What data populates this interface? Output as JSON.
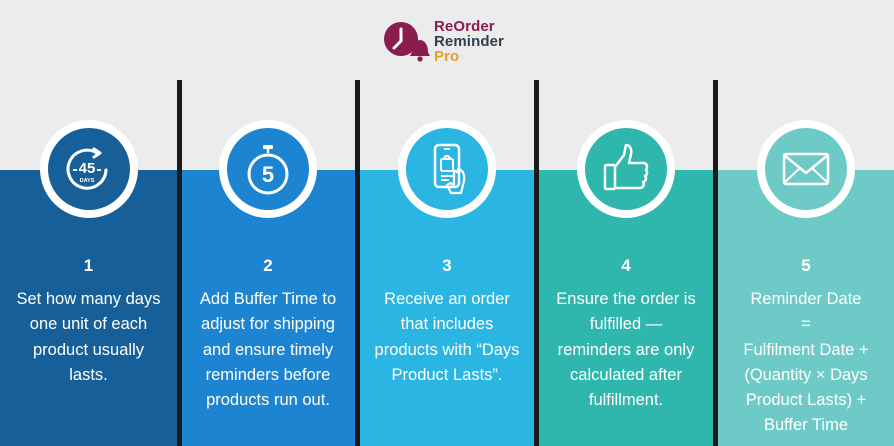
{
  "logo": {
    "line1": "ReOrder",
    "line2": "Reminder",
    "line3": "Pro"
  },
  "colors": {
    "step1": "#175f98",
    "step2": "#1c84d0",
    "step3": "#2bb5e3",
    "step4": "#2fb6ad",
    "step5": "#6dcac7",
    "brand_purple": "#8a1c4e",
    "brand_orange": "#e3a12a"
  },
  "steps": [
    {
      "number": "1",
      "icon": "stopwatch-45-days-icon",
      "badge_value": "45",
      "badge_unit": "DAYS",
      "lines": [
        "Set how many days",
        "one unit of each",
        "product usually",
        "lasts."
      ]
    },
    {
      "number": "2",
      "icon": "timer-5-icon",
      "badge_value": "5",
      "lines": [
        "Add Buffer Time to",
        "adjust for shipping",
        "and ensure timely",
        "reminders before",
        "products run out."
      ]
    },
    {
      "number": "3",
      "icon": "smartphone-shopping-icon",
      "lines": [
        "Receive an order",
        "that includes",
        "products with “Days",
        "Product Lasts”."
      ]
    },
    {
      "number": "4",
      "icon": "thumbs-up-icon",
      "lines": [
        "Ensure the order is",
        "fulfilled —",
        "reminders are only",
        "calculated after",
        "fulfillment."
      ]
    },
    {
      "number": "5",
      "icon": "envelope-icon",
      "lines": [
        "Reminder Date",
        "=",
        "Fulfilment Date +",
        "(Quantity × Days",
        "Product Lasts)   +",
        "Buffer Time"
      ]
    }
  ]
}
